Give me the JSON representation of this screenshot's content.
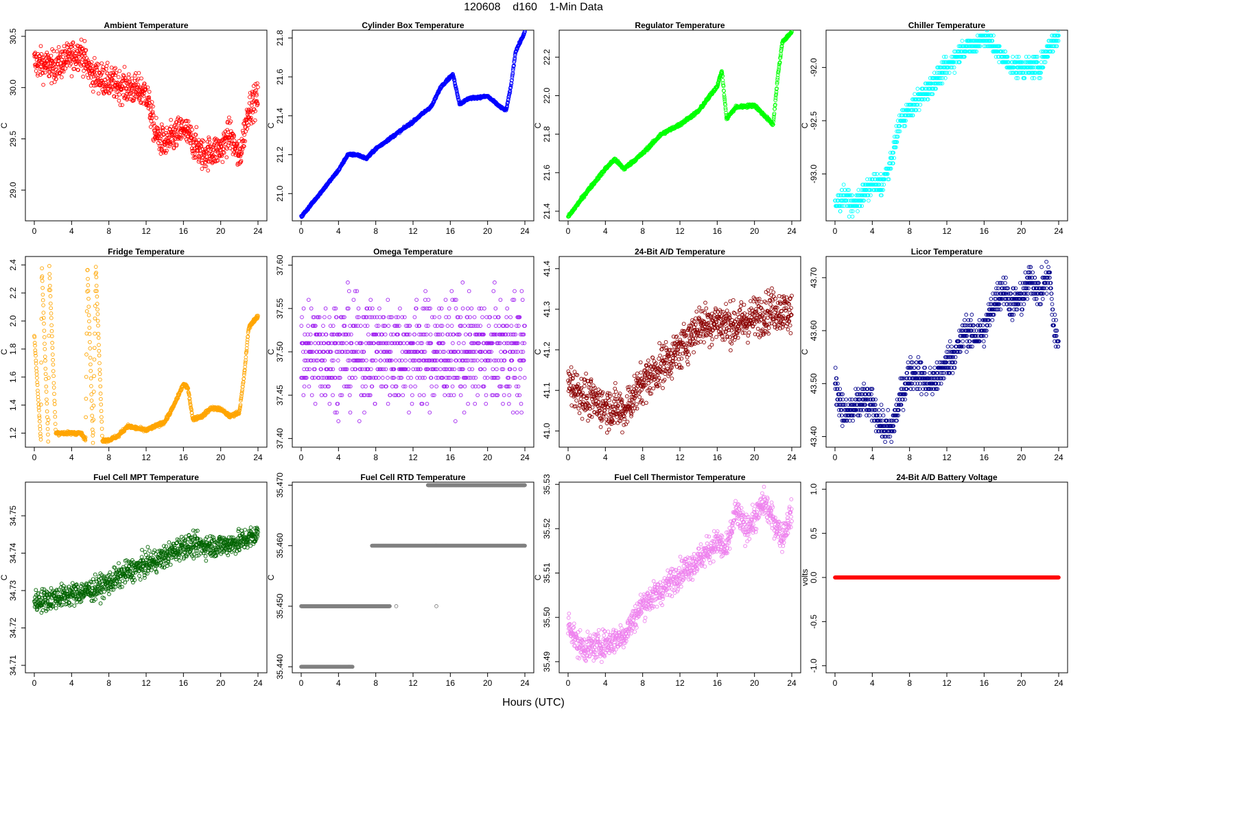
{
  "figure": {
    "title": "120608    d160    1-Min Data",
    "xlabel": "Hours (UTC)"
  },
  "chart_data": [
    {
      "type": "scatter",
      "title": "Ambient Temperature",
      "ylabel": "C",
      "color": "#ff0000",
      "xlim": [
        0,
        24
      ],
      "xticks": [
        "0",
        "4",
        "8",
        "12",
        "16",
        "20",
        "24"
      ],
      "ylim": [
        28.7,
        30.56
      ],
      "yticks": [
        "29.0",
        "29.5",
        "30.0",
        "30.5"
      ],
      "series": {
        "x": [
          0,
          2,
          4,
          5,
          6,
          8,
          10,
          12,
          13,
          14,
          16,
          18,
          20,
          21,
          22,
          23,
          24
        ],
        "y": [
          30.25,
          30.2,
          30.3,
          30.35,
          30.15,
          30.05,
          30.0,
          29.95,
          29.55,
          29.45,
          29.6,
          29.35,
          29.4,
          29.55,
          29.3,
          29.8,
          29.9
        ]
      },
      "noise": 0.15
    },
    {
      "type": "scatter",
      "title": "Cylinder Box Temperature",
      "ylabel": "C",
      "color": "#0000ff",
      "xlim": [
        0,
        24
      ],
      "xticks": [
        "0",
        "4",
        "8",
        "12",
        "16",
        "20",
        "24"
      ],
      "ylim": [
        20.86,
        21.84
      ],
      "yticks": [
        "21.0",
        "21.2",
        "21.4",
        "21.6",
        "21.8"
      ],
      "series": {
        "x": [
          0,
          2,
          4,
          5,
          6,
          7,
          8,
          10,
          12,
          14,
          15,
          16,
          16.3,
          17,
          18,
          20,
          21.5,
          22,
          22.5,
          23,
          24
        ],
        "y": [
          20.88,
          21.0,
          21.12,
          21.2,
          21.2,
          21.18,
          21.23,
          21.3,
          21.37,
          21.45,
          21.55,
          21.6,
          21.61,
          21.46,
          21.49,
          21.5,
          21.44,
          21.43,
          21.55,
          21.73,
          21.83
        ]
      },
      "noise": 0.006
    },
    {
      "type": "scatter",
      "title": "Regulator Temperature",
      "ylabel": "C",
      "color": "#00ff00",
      "xlim": [
        0,
        24
      ],
      "xticks": [
        "0",
        "4",
        "8",
        "12",
        "16",
        "20",
        "24"
      ],
      "ylim": [
        21.35,
        22.34
      ],
      "yticks": [
        "21.4",
        "21.6",
        "21.8",
        "22.0",
        "22.2"
      ],
      "series": {
        "x": [
          0,
          2,
          4,
          5,
          6,
          7,
          8,
          10,
          12,
          14,
          16,
          16.5,
          17,
          18,
          20,
          21,
          22,
          22.5,
          23,
          24
        ],
        "y": [
          21.37,
          21.5,
          21.62,
          21.67,
          21.62,
          21.66,
          21.7,
          21.8,
          21.85,
          21.92,
          22.05,
          22.13,
          21.88,
          21.94,
          21.95,
          21.9,
          21.85,
          22.1,
          22.28,
          22.33
        ]
      },
      "noise": 0.008
    },
    {
      "type": "scatter",
      "title": "Chiller Temperature",
      "ylabel": "C",
      "color": "#00ffff",
      "xlim": [
        0,
        24
      ],
      "xticks": [
        "0",
        "4",
        "8",
        "12",
        "16",
        "20",
        "24"
      ],
      "ylim": [
        -93.44,
        -91.65
      ],
      "yticks": [
        "-93.0",
        "-92.5",
        "-92.0"
      ],
      "series": {
        "x": [
          0,
          1,
          2,
          3,
          4,
          5,
          6,
          7,
          8,
          9,
          10,
          11,
          12,
          13,
          14,
          15,
          16,
          17,
          18,
          19,
          20,
          21,
          22,
          23,
          24
        ],
        "y": [
          -93.3,
          -93.2,
          -93.3,
          -93.2,
          -93.1,
          -93.1,
          -92.9,
          -92.5,
          -92.4,
          -92.3,
          -92.2,
          -92.1,
          -92.0,
          -91.9,
          -91.8,
          -91.8,
          -91.7,
          -91.8,
          -91.9,
          -92.0,
          -92.0,
          -92.0,
          -92.0,
          -91.8,
          -91.7
        ]
      },
      "noise": 0.09,
      "quant": 0.05
    },
    {
      "type": "scatter",
      "title": "Fridge Temperature",
      "ylabel": "C",
      "color": "#ffa500",
      "xlim": [
        0,
        24
      ],
      "xticks": [
        "0",
        "4",
        "8",
        "12",
        "16",
        "20",
        "24"
      ],
      "ylim": [
        1.1,
        2.46
      ],
      "yticks": [
        "1.2",
        "1.4",
        "1.6",
        "1.8",
        "2.0",
        "2.2",
        "2.4"
      ],
      "series": {
        "x": [
          0,
          0.7,
          0.8,
          1.5,
          1.6,
          2.3,
          3,
          4,
          5,
          5.5,
          5.7,
          6.3,
          6.6,
          7.3,
          8,
          9,
          10,
          12,
          14,
          15,
          16,
          16.5,
          17,
          18,
          19,
          20,
          21,
          22,
          22.5,
          23,
          23.5,
          24
        ],
        "y": [
          1.9,
          1.15,
          2.4,
          1.12,
          2.4,
          1.2,
          1.2,
          1.2,
          1.2,
          1.15,
          2.4,
          1.12,
          2.4,
          1.15,
          1.15,
          1.18,
          1.25,
          1.22,
          1.28,
          1.4,
          1.55,
          1.52,
          1.3,
          1.32,
          1.38,
          1.37,
          1.32,
          1.35,
          1.6,
          1.95,
          2.0,
          2.03
        ]
      },
      "noise": 0.012
    },
    {
      "type": "scatter",
      "title": "Omega Temperature",
      "ylabel": "C",
      "color": "#a020f0",
      "xlim": [
        0,
        24
      ],
      "xticks": [
        "0",
        "4",
        "8",
        "12",
        "16",
        "20",
        "24"
      ],
      "ylim": [
        37.39,
        37.61
      ],
      "yticks": [
        "37.40",
        "37.45",
        "37.50",
        "37.55",
        "37.60"
      ],
      "series": {
        "x": [
          0,
          4,
          8,
          12,
          16,
          20,
          24
        ],
        "y": [
          37.5,
          37.5,
          37.5,
          37.5,
          37.5,
          37.5,
          37.5
        ]
      },
      "noise": 0.06,
      "quant": 0.01
    },
    {
      "type": "scatter",
      "title": "24-Bit A/D Temperature",
      "ylabel": "C",
      "color": "#8b0000",
      "xlim": [
        0,
        24
      ],
      "xticks": [
        "0",
        "4",
        "8",
        "12",
        "16",
        "20",
        "24"
      ],
      "ylim": [
        40.96,
        41.43
      ],
      "yticks": [
        "41.0",
        "41.1",
        "41.2",
        "41.3",
        "41.4"
      ],
      "series": {
        "x": [
          0,
          2,
          4,
          6,
          8,
          10,
          12,
          14,
          16,
          18,
          20,
          22,
          24
        ],
        "y": [
          41.12,
          41.08,
          41.06,
          41.05,
          41.12,
          41.16,
          41.2,
          41.26,
          41.27,
          41.26,
          41.28,
          41.3,
          41.29
        ]
      },
      "noise": 0.05
    },
    {
      "type": "scatter",
      "title": "Licor Temperature",
      "ylabel": "C",
      "color": "#00008b",
      "xlim": [
        0,
        24
      ],
      "xticks": [
        "0",
        "4",
        "8",
        "12",
        "16",
        "20",
        "24"
      ],
      "ylim": [
        43.38,
        43.74
      ],
      "yticks": [
        "43.40",
        "43.50",
        "43.60",
        "43.70"
      ],
      "series": {
        "x": [
          0,
          1,
          2,
          3,
          4,
          5,
          6,
          7,
          8,
          9,
          10,
          11,
          12,
          13,
          14,
          15,
          16,
          17,
          18,
          19,
          20,
          21,
          22,
          23,
          23.5,
          24
        ],
        "y": [
          43.5,
          43.44,
          43.45,
          43.47,
          43.46,
          43.42,
          43.41,
          43.47,
          43.52,
          43.52,
          43.5,
          43.51,
          43.54,
          43.56,
          43.6,
          43.59,
          43.6,
          43.65,
          43.68,
          43.65,
          43.66,
          43.7,
          43.67,
          43.71,
          43.6,
          43.58
        ]
      },
      "noise": 0.03,
      "quant": 0.01
    },
    {
      "type": "scatter",
      "title": "Fuel Cell MPT Temperature",
      "ylabel": "C",
      "color": "#006400",
      "xlim": [
        0,
        24
      ],
      "xticks": [
        "0",
        "4",
        "8",
        "12",
        "16",
        "20",
        "24"
      ],
      "ylim": [
        34.708,
        34.759
      ],
      "yticks": [
        "34.71",
        "34.72",
        "34.73",
        "34.74",
        "34.75"
      ],
      "series": {
        "x": [
          0,
          2,
          4,
          6,
          8,
          10,
          12,
          14,
          16,
          18,
          20,
          22,
          24
        ],
        "y": [
          34.727,
          34.728,
          34.729,
          34.73,
          34.732,
          34.735,
          34.737,
          34.739,
          34.742,
          34.742,
          34.742,
          34.743,
          34.745
        ]
      },
      "noise": 0.003
    },
    {
      "type": "scatter",
      "title": "Fuel Cell RTD Temperature",
      "ylabel": "C",
      "color": "#808080",
      "xlim": [
        0,
        24
      ],
      "xticks": [
        "0",
        "4",
        "8",
        "12",
        "16",
        "20",
        "24"
      ],
      "ylim": [
        35.439,
        35.4705
      ],
      "yticks": [
        "35.440",
        "35.450",
        "35.460",
        "35.470"
      ],
      "levels": [
        {
          "y": 35.44,
          "x0": 0,
          "x1": 5.5
        },
        {
          "y": 35.45,
          "x0": 0,
          "x1": 9.5
        },
        {
          "y": 35.46,
          "x0": 7.6,
          "x1": 24
        },
        {
          "y": 35.47,
          "x0": 13.6,
          "x1": 24
        }
      ]
    },
    {
      "type": "scatter",
      "title": "Fuel Cell Thermistor Temperature",
      "ylabel": "C",
      "color": "#ee82ee",
      "xlim": [
        0,
        24
      ],
      "xticks": [
        "0",
        "4",
        "8",
        "12",
        "16",
        "20",
        "24"
      ],
      "ylim": [
        35.4875,
        35.5305
      ],
      "yticks": [
        "35.49",
        "35.50",
        "35.51",
        "35.52",
        "35.53"
      ],
      "series": {
        "x": [
          0,
          1,
          2,
          4,
          6,
          8,
          10,
          12,
          14,
          16,
          17,
          18,
          19,
          20,
          21,
          22,
          23,
          24
        ],
        "y": [
          35.499,
          35.494,
          35.493,
          35.494,
          35.496,
          35.503,
          35.506,
          35.51,
          35.513,
          35.517,
          35.515,
          35.524,
          35.52,
          35.522,
          35.526,
          35.522,
          35.518,
          35.524
        ]
      },
      "noise": 0.003
    },
    {
      "type": "scatter",
      "title": "24-Bit A/D Battery Voltage",
      "ylabel": "volts",
      "color": "#ff0000",
      "xlim": [
        0,
        24
      ],
      "xticks": [
        "0",
        "4",
        "8",
        "12",
        "16",
        "20",
        "24"
      ],
      "ylim": [
        -1.08,
        1.08
      ],
      "yticks": [
        "-1.0",
        "-0.5",
        "0.0",
        "0.5",
        "1.0"
      ],
      "series": {
        "x": [
          0,
          24
        ],
        "y": [
          0,
          0
        ]
      },
      "noise": 0,
      "dense": true
    }
  ]
}
